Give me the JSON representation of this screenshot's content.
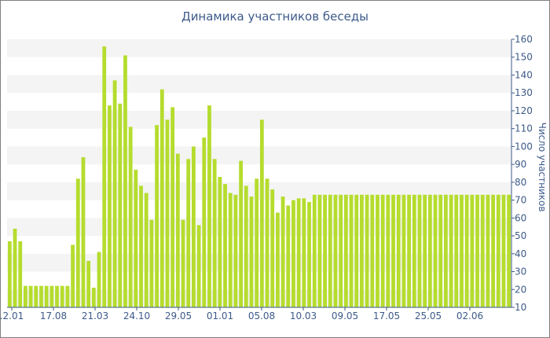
{
  "chart_data": {
    "type": "bar",
    "title": "Динамика участников беседы",
    "xlabel": "",
    "ylabel": "Число участников",
    "ylim": [
      10,
      160
    ],
    "y_ticks": [
      10,
      20,
      30,
      40,
      50,
      60,
      70,
      80,
      90,
      100,
      110,
      120,
      130,
      140,
      150,
      160
    ],
    "y_axis_position": "right",
    "grid": "alternating horizontal bands",
    "bar_color": "#b5dc2e",
    "x_tick_labels": [
      ".2.01",
      "17.08",
      "21.03",
      "24.10",
      "29.05",
      "01.01",
      "05.08",
      "10.03",
      "09.05",
      "17.05",
      "25.05",
      "02.06"
    ],
    "values": [
      47,
      54,
      47,
      22,
      22,
      22,
      22,
      22,
      22,
      22,
      22,
      22,
      45,
      82,
      94,
      36,
      21,
      41,
      156,
      123,
      137,
      124,
      151,
      111,
      87,
      78,
      74,
      59,
      112,
      132,
      115,
      122,
      96,
      59,
      93,
      100,
      56,
      105,
      123,
      93,
      83,
      79,
      74,
      73,
      92,
      78,
      72,
      82,
      115,
      82,
      76,
      63,
      72,
      67,
      70,
      71,
      71,
      69,
      73,
      73,
      73,
      73,
      73,
      73,
      73,
      73,
      73,
      73,
      73,
      73,
      73,
      73,
      73,
      73,
      73,
      73,
      73,
      73,
      73,
      73,
      73,
      73,
      73,
      73,
      73,
      73,
      73,
      73,
      73,
      73,
      73,
      73,
      73,
      73,
      73,
      73
    ]
  }
}
